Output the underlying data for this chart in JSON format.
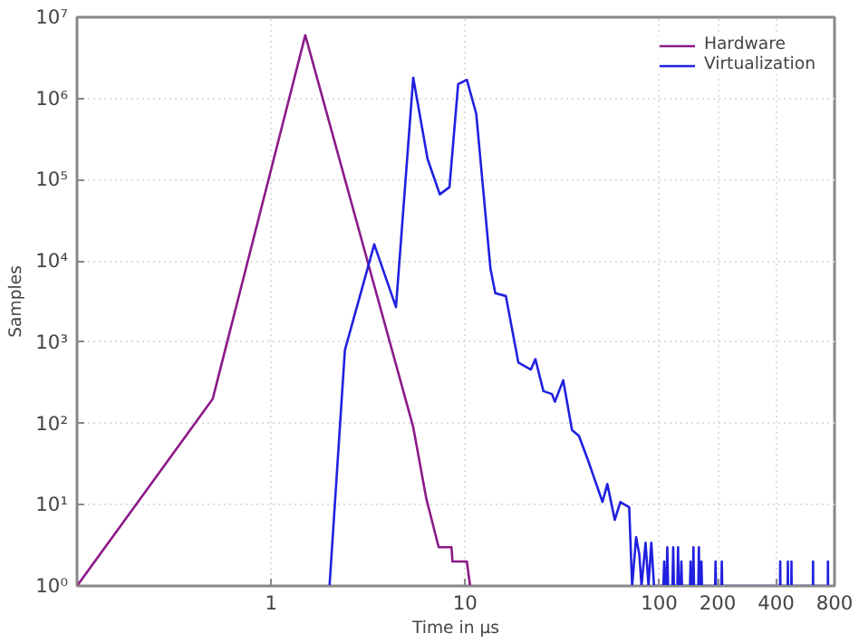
{
  "chart_data": {
    "type": "line",
    "xlabel": "Time in µs",
    "ylabel": "Samples",
    "log": "xy",
    "grid": true,
    "legend": "top right",
    "marker": "none",
    "line_style": "solid",
    "xlim": [
      0.1,
      800
    ],
    "xticks": [
      1,
      10,
      100,
      200,
      400,
      800
    ],
    "ylim": [
      1,
      10000000
    ],
    "yticks": [
      {
        "value": 1,
        "label": "10⁰"
      },
      {
        "value": 10,
        "label": "10¹"
      },
      {
        "value": 100,
        "label": "10²"
      },
      {
        "value": 1000,
        "label": "10³"
      },
      {
        "value": 10000,
        "label": "10⁴"
      },
      {
        "value": 100000,
        "label": "10⁵"
      },
      {
        "value": 1000000,
        "label": "10⁶"
      },
      {
        "value": 10000000,
        "label": "10⁷"
      }
    ],
    "series": [
      {
        "name": "Hardware",
        "color": "#8b1a89",
        "x": [
          0.1,
          0.5,
          1.5,
          5.4,
          6.3,
          7.3,
          8.5,
          8.6,
          10.2,
          10.6
        ],
        "values": [
          1,
          200,
          6000000,
          90,
          12,
          3,
          3,
          2,
          2,
          1
        ]
      },
      {
        "name": "Virtualization",
        "color": "#2020e0",
        "x": [
          2,
          2.4,
          3.4,
          4.4,
          5.4,
          6.4,
          7.4,
          8.3,
          9.2,
          10.2,
          11.4,
          13.5,
          14.3,
          16.2,
          18.8,
          20.5,
          21.8,
          23,
          25.3,
          28,
          29,
          32,
          35.5,
          38.6,
          43,
          45.7,
          51,
          54,
          59,
          63,
          70,
          72.5,
          76,
          79,
          81,
          85,
          88,
          91,
          94,
          105,
          106,
          107,
          109,
          110,
          111,
          117,
          118,
          119,
          124,
          125,
          126,
          129,
          130,
          131,
          144,
          145,
          146,
          149,
          150,
          151,
          159,
          160,
          161,
          164,
          165,
          166,
          194,
          195,
          196,
          209,
          210,
          211,
          419,
          420,
          421,
          459,
          460,
          461,
          479,
          480,
          481,
          619,
          620,
          621,
          739,
          740,
          741,
          750
        ],
        "values": [
          1,
          800,
          16000,
          2700,
          1800000,
          180000,
          66000,
          81000,
          1500000,
          1700000,
          650000,
          8000,
          4000,
          3700,
          560,
          500,
          460,
          620,
          250,
          230,
          185,
          340,
          83,
          70,
          35,
          23,
          10.8,
          18,
          6.5,
          10.8,
          9.3,
          1,
          4,
          2.4,
          1,
          3.4,
          1,
          3.4,
          1,
          1,
          2,
          1,
          1,
          3,
          1,
          1,
          3,
          1,
          1,
          3,
          1,
          1,
          2,
          1,
          1,
          2,
          1,
          1,
          3,
          1,
          1,
          3,
          1,
          1,
          2,
          1,
          1,
          2,
          1,
          1,
          2,
          1,
          1,
          2,
          1,
          1,
          2,
          1,
          1,
          2,
          1,
          1,
          2,
          1,
          1,
          2,
          1,
          1
        ]
      }
    ]
  }
}
